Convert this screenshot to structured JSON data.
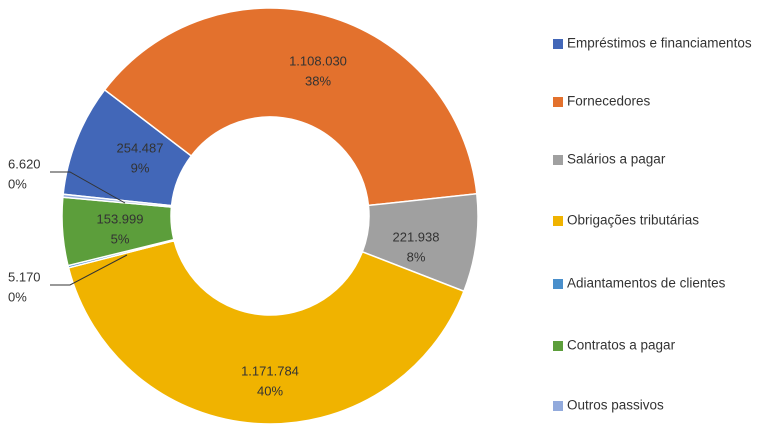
{
  "chart_data": {
    "type": "donut",
    "categories": [
      "Empréstimos e financiamentos",
      "Fornecedores",
      "Salários a pagar",
      "Obrigações tributárias",
      "Adiantamentos de clientes",
      "Contratos a pagar",
      "Outros passivos"
    ],
    "values": [
      254487,
      1108030,
      221938,
      1171784,
      5170,
      153999,
      6620
    ],
    "value_labels": [
      "254.487",
      "1.108.030",
      "221.938",
      "1.171.784",
      "5.170",
      "153.999",
      "6.620"
    ],
    "percent_labels": [
      "9%",
      "38%",
      "8%",
      "40%",
      "0%",
      "5%",
      "0%"
    ],
    "colors": [
      "#4267b8",
      "#e3712d",
      "#a0a0a0",
      "#f0b300",
      "#4a8fcb",
      "#5c9e3b",
      "#92aadc"
    ],
    "legend": "right"
  }
}
